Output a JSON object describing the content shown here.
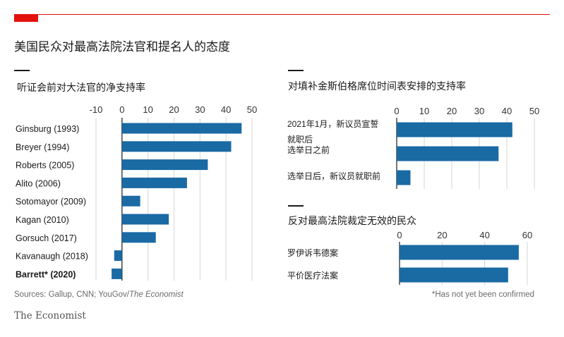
{
  "title": "美国民众对最高法院法官和提名人的态度",
  "chart_data": [
    {
      "type": "bar",
      "orientation": "horizontal",
      "title": "听证会前对大法官的净支持率",
      "categories": [
        "Ginsburg (1993)",
        "Breyer (1994)",
        "Roberts (2005)",
        "Alito (2006)",
        "Sotomayor (2009)",
        "Kagan (2010)",
        "Gorsuch (2017)",
        "Kavanaugh (2018)",
        "Barrett* (2020)"
      ],
      "values": [
        46,
        42,
        33,
        25,
        7,
        18,
        13,
        -3,
        -4
      ],
      "xlim": [
        -10,
        50
      ],
      "xticks": [
        "-10",
        "0",
        "10",
        "20",
        "30",
        "40",
        "50"
      ],
      "grid": true
    },
    {
      "type": "bar",
      "orientation": "horizontal",
      "title": "对填补金斯伯格席位时间表安排的支持率",
      "categories": [
        "2021年1月，新议员宣誓就职后",
        "选举日之前",
        "选举日后，新议员就职前"
      ],
      "values": [
        42,
        37,
        5
      ],
      "xlim": [
        0,
        50
      ],
      "xticks": [
        "0",
        "10",
        "20",
        "30",
        "40",
        "50"
      ],
      "grid": true
    },
    {
      "type": "bar",
      "orientation": "horizontal",
      "title": "反对最高法院裁定无效的民众",
      "categories": [
        "罗伊诉韦德案",
        "平价医疗法案"
      ],
      "values": [
        56,
        51
      ],
      "xlim": [
        0,
        60
      ],
      "xticks": [
        "0",
        "20",
        "40",
        "60"
      ],
      "grid": true
    }
  ],
  "footer": {
    "sources_prefix": "Sources: Gallup, CNN; YouGov/",
    "sources_italic": "The Economist",
    "note": "*Has not yet been confirmed",
    "brand": "The Economist"
  },
  "colors": {
    "accent_red": "#e3120b",
    "bar": "#1a6aa4",
    "grid": "#d6d6d6",
    "axis": "#1a1a1a"
  }
}
